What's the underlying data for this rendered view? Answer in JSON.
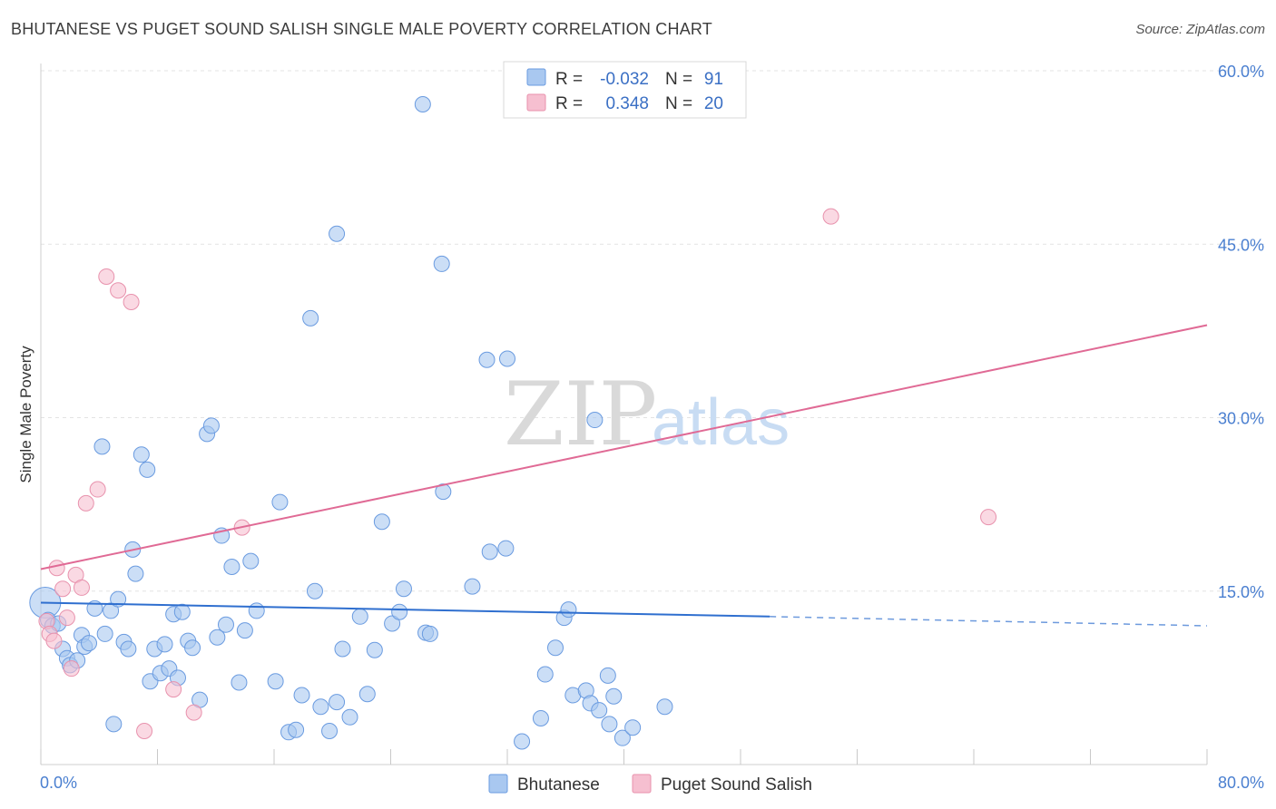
{
  "title": "BHUTANESE VS PUGET SOUND SALISH SINGLE MALE POVERTY CORRELATION CHART",
  "source": "Source: ZipAtlas.com",
  "watermark": {
    "zip": "ZIP",
    "atlas": "atlas"
  },
  "colors": {
    "blue_fill": "#a9c8f0",
    "blue_stroke": "#6a9be0",
    "blue_line": "#2f6fcf",
    "pink_fill": "#f6bfd0",
    "pink_stroke": "#e892ad",
    "pink_line": "#e06a95",
    "grid": "#e3e3e3",
    "axis_text": "#4a7fd0"
  },
  "legend": {
    "series": [
      {
        "r_label": "R =",
        "r_value": "-0.032",
        "n_label": "N =",
        "n_value": "91"
      },
      {
        "r_label": "R =",
        "r_value": "0.348",
        "n_label": "N =",
        "n_value": "20"
      }
    ]
  },
  "chart_data": {
    "type": "scatter",
    "title": "BHUTANESE VS PUGET SOUND SALISH SINGLE MALE POVERTY CORRELATION CHART",
    "xlabel": "",
    "ylabel": "Single Male Poverty",
    "xlim": [
      0,
      80
    ],
    "ylim": [
      0,
      60
    ],
    "x_tick_labels": [
      "0.0%",
      "80.0%"
    ],
    "y_ticks": [
      15,
      30,
      45,
      60
    ],
    "y_tick_labels": [
      "15.0%",
      "30.0%",
      "45.0%",
      "60.0%"
    ],
    "series": [
      {
        "name": "Bhutanese",
        "trend": {
          "x0": 0,
          "y0": 14.0,
          "x1": 50,
          "y1": 12.8,
          "dash_to_x": 80,
          "dash_to_y": 12.0
        },
        "points": [
          [
            0.3,
            14.0
          ],
          [
            0.5,
            12.5
          ],
          [
            0.8,
            12.0
          ],
          [
            1.2,
            12.2
          ],
          [
            1.5,
            10.0
          ],
          [
            1.8,
            9.2
          ],
          [
            2.0,
            8.6
          ],
          [
            2.5,
            9.0
          ],
          [
            2.8,
            11.2
          ],
          [
            3.0,
            10.2
          ],
          [
            3.3,
            10.5
          ],
          [
            3.7,
            13.5
          ],
          [
            4.2,
            27.5
          ],
          [
            4.4,
            11.3
          ],
          [
            4.8,
            13.3
          ],
          [
            5.0,
            3.5
          ],
          [
            5.3,
            14.3
          ],
          [
            5.7,
            10.6
          ],
          [
            6.0,
            10.0
          ],
          [
            6.3,
            18.6
          ],
          [
            6.5,
            16.5
          ],
          [
            6.9,
            26.8
          ],
          [
            7.3,
            25.5
          ],
          [
            7.5,
            7.2
          ],
          [
            7.8,
            10.0
          ],
          [
            8.2,
            7.9
          ],
          [
            8.5,
            10.4
          ],
          [
            8.8,
            8.3
          ],
          [
            9.1,
            13.0
          ],
          [
            9.4,
            7.5
          ],
          [
            9.7,
            13.2
          ],
          [
            10.1,
            10.7
          ],
          [
            10.4,
            10.1
          ],
          [
            10.9,
            5.6
          ],
          [
            11.4,
            28.6
          ],
          [
            11.7,
            29.3
          ],
          [
            12.1,
            11.0
          ],
          [
            12.4,
            19.8
          ],
          [
            12.7,
            12.1
          ],
          [
            13.1,
            17.1
          ],
          [
            13.6,
            7.1
          ],
          [
            14.0,
            11.6
          ],
          [
            14.4,
            17.6
          ],
          [
            14.8,
            13.3
          ],
          [
            16.1,
            7.2
          ],
          [
            16.4,
            22.7
          ],
          [
            17.0,
            2.8
          ],
          [
            17.5,
            3.0
          ],
          [
            17.9,
            6.0
          ],
          [
            18.5,
            38.6
          ],
          [
            18.8,
            15.0
          ],
          [
            19.2,
            5.0
          ],
          [
            19.8,
            2.9
          ],
          [
            20.3,
            5.4
          ],
          [
            20.7,
            10.0
          ],
          [
            20.3,
            45.9
          ],
          [
            21.2,
            4.1
          ],
          [
            21.9,
            12.8
          ],
          [
            22.4,
            6.1
          ],
          [
            22.9,
            9.9
          ],
          [
            23.4,
            21.0
          ],
          [
            24.1,
            12.2
          ],
          [
            24.6,
            13.2
          ],
          [
            24.9,
            15.2
          ],
          [
            26.4,
            11.4
          ],
          [
            26.7,
            11.3
          ],
          [
            26.2,
            57.1
          ],
          [
            27.6,
            23.6
          ],
          [
            27.5,
            43.3
          ],
          [
            29.6,
            15.4
          ],
          [
            30.6,
            35.0
          ],
          [
            30.8,
            18.4
          ],
          [
            31.9,
            18.7
          ],
          [
            32.0,
            35.1
          ],
          [
            33.0,
            2.0
          ],
          [
            34.3,
            4.0
          ],
          [
            34.6,
            7.8
          ],
          [
            35.3,
            10.1
          ],
          [
            35.9,
            12.7
          ],
          [
            36.2,
            13.4
          ],
          [
            36.5,
            6.0
          ],
          [
            37.4,
            6.4
          ],
          [
            37.7,
            5.3
          ],
          [
            38.0,
            29.8
          ],
          [
            38.3,
            4.7
          ],
          [
            38.9,
            7.7
          ],
          [
            39.0,
            3.5
          ],
          [
            39.3,
            5.9
          ],
          [
            39.9,
            2.3
          ],
          [
            40.6,
            3.2
          ],
          [
            42.8,
            5.0
          ]
        ]
      },
      {
        "name": "Puget Sound Salish",
        "trend": {
          "x0": 0,
          "y0": 16.9,
          "x1": 80,
          "y1": 38.0
        },
        "points": [
          [
            0.4,
            12.4
          ],
          [
            0.6,
            11.3
          ],
          [
            0.9,
            10.7
          ],
          [
            1.1,
            17.0
          ],
          [
            1.5,
            15.2
          ],
          [
            1.8,
            12.7
          ],
          [
            2.1,
            8.3
          ],
          [
            2.4,
            16.4
          ],
          [
            2.8,
            15.3
          ],
          [
            3.1,
            22.6
          ],
          [
            3.9,
            23.8
          ],
          [
            4.5,
            42.2
          ],
          [
            5.3,
            41.0
          ],
          [
            6.2,
            40.0
          ],
          [
            7.1,
            2.9
          ],
          [
            9.1,
            6.5
          ],
          [
            10.5,
            4.5
          ],
          [
            13.8,
            20.5
          ],
          [
            54.2,
            47.4
          ],
          [
            65.0,
            21.4
          ]
        ]
      }
    ]
  }
}
